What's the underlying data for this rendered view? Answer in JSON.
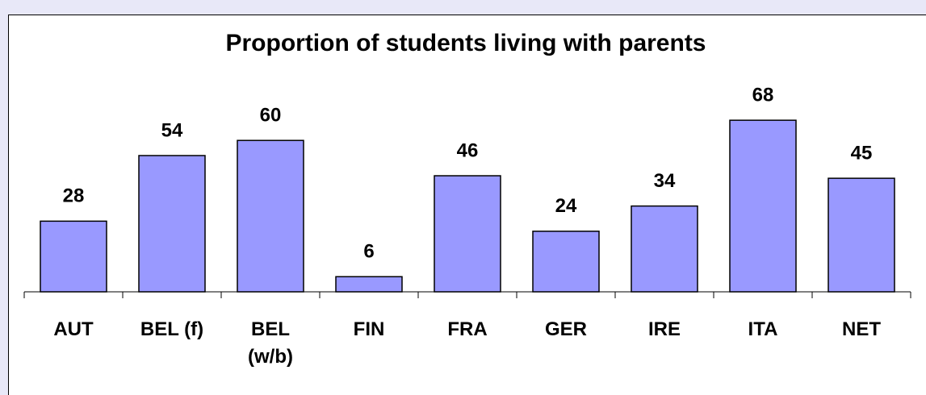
{
  "chart_data": {
    "type": "bar",
    "title": "Proportion of students living with parents",
    "categories": [
      "AUT",
      "BEL (f)",
      "BEL (w/b)",
      "FIN",
      "FRA",
      "GER",
      "IRE",
      "ITA",
      "NET"
    ],
    "values": [
      28,
      54,
      60,
      6,
      46,
      24,
      34,
      68,
      45
    ],
    "color": "#9999ff"
  }
}
